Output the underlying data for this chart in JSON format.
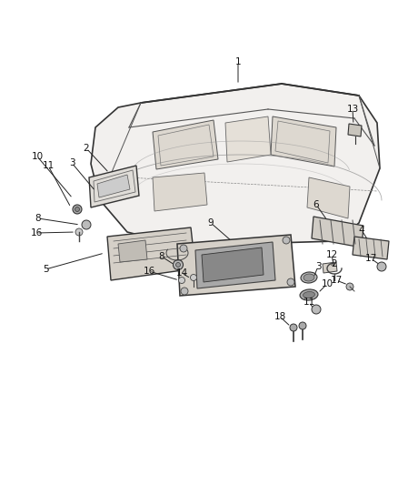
{
  "background_color": "#ffffff",
  "figure_width": 4.38,
  "figure_height": 5.33,
  "dpi": 100,
  "line_color": "#444444",
  "light_fill": "#e8e8e8",
  "mid_fill": "#d0d0d0",
  "dark_fill": "#b0b0b0"
}
